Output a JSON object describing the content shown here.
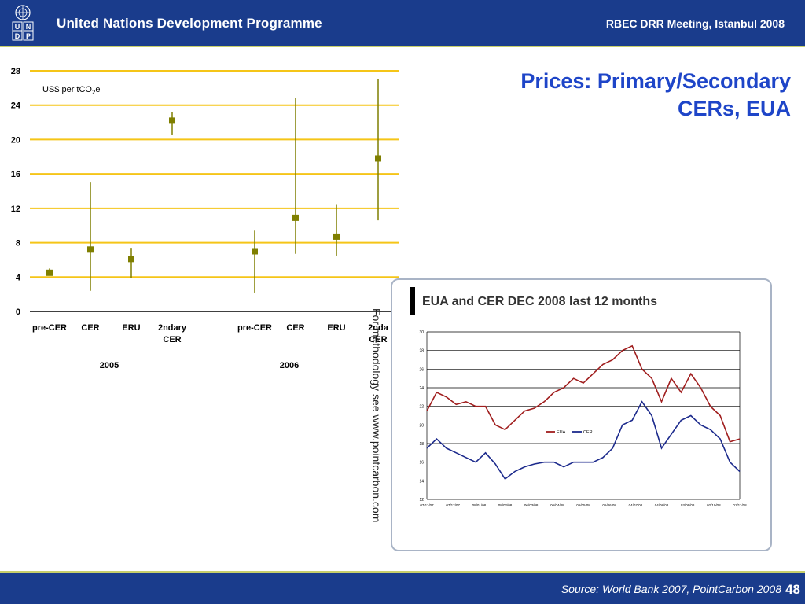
{
  "header": {
    "org_title": "United Nations Development Programme",
    "meeting": "RBEC DRR Meeting, Istanbul 2008",
    "logo_letters": "U N D P"
  },
  "slide": {
    "title_line1": "Prices: Primary/Secondary",
    "title_line2": "CERs, EUA",
    "vertical_note": "For methodology see www.pointcarbon.com"
  },
  "footer": {
    "source": "Source: World Bank 2007, PointCarbon 2008",
    "page_number": "48"
  },
  "colors": {
    "header_bg": "#1a3c8c",
    "gridline": "#f5c518",
    "marker": "#7f7f00",
    "eua_line": "#a01e1e",
    "cer_line": "#1c2a8c",
    "title": "#1e45c8"
  },
  "chart_data": [
    {
      "type": "scatter",
      "subtype": "high-low-mean",
      "unit_label_prefix": "US$ per tCO",
      "unit_label_sub": "2",
      "unit_label_suffix": "e",
      "ylim": [
        0,
        28
      ],
      "yticks": [
        0,
        4,
        8,
        12,
        16,
        20,
        24,
        28
      ],
      "grid": true,
      "groups": [
        "2005",
        "2006"
      ],
      "categories": [
        {
          "label": "pre-CER",
          "label2": "",
          "group": "2005",
          "mean": 4.5,
          "low": 4.2,
          "high": 5.0
        },
        {
          "label": "CER",
          "label2": "",
          "group": "2005",
          "mean": 7.2,
          "low": 2.4,
          "high": 15.0
        },
        {
          "label": "ERU",
          "label2": "",
          "group": "2005",
          "mean": 6.1,
          "low": 3.9,
          "high": 7.4
        },
        {
          "label": "2ndary",
          "label2": "CER",
          "group": "2005",
          "mean": 22.2,
          "low": 20.5,
          "high": 23.2
        },
        {
          "label": "pre-CER",
          "label2": "",
          "group": "2006",
          "mean": 7.0,
          "low": 2.2,
          "high": 9.4
        },
        {
          "label": "CER",
          "label2": "",
          "group": "2006",
          "mean": 10.9,
          "low": 6.7,
          "high": 24.8
        },
        {
          "label": "ERU",
          "label2": "",
          "group": "2006",
          "mean": 8.7,
          "low": 6.5,
          "high": 12.4
        },
        {
          "label": "2nda",
          "label2": "CER",
          "group": "2006",
          "mean": 17.8,
          "low": 10.6,
          "high": 27.0
        }
      ]
    },
    {
      "type": "line",
      "title": "EUA and CER DEC 2008 last 12 months",
      "ylim": [
        12,
        30
      ],
      "yticks": [
        12,
        14,
        16,
        18,
        20,
        22,
        24,
        26,
        28,
        30
      ],
      "grid": true,
      "legend": "center",
      "x_labels": [
        "07/11/07",
        "07/12/07",
        "08/01/08",
        "08/02/08",
        "06/03/08",
        "06/04/08",
        "06/05/08",
        "05/06/08",
        "04/07/08",
        "04/08/08",
        "03/09/08",
        "02/10/08",
        "01/11/08"
      ],
      "series": [
        {
          "name": "EUA",
          "values": [
            21.5,
            23.5,
            23.0,
            22.2,
            22.5,
            22.0,
            22.0,
            20.0,
            19.5,
            20.5,
            21.5,
            21.8,
            22.5,
            23.5,
            24.0,
            25.0,
            24.5,
            25.5,
            26.5,
            27.0,
            28.0,
            28.5,
            26.0,
            25.0,
            22.5,
            25.0,
            23.5,
            25.5,
            24.0,
            22.0,
            21.0,
            18.2,
            18.5
          ]
        },
        {
          "name": "CER",
          "values": [
            17.5,
            18.5,
            17.5,
            17.0,
            16.5,
            16.0,
            17.0,
            15.8,
            14.2,
            15.0,
            15.5,
            15.8,
            16.0,
            16.0,
            15.5,
            16.0,
            16.0,
            16.0,
            16.5,
            17.5,
            20.0,
            20.5,
            22.5,
            21.0,
            17.5,
            19.0,
            20.5,
            21.0,
            20.0,
            19.5,
            18.5,
            16.0,
            15.0
          ]
        }
      ]
    }
  ]
}
